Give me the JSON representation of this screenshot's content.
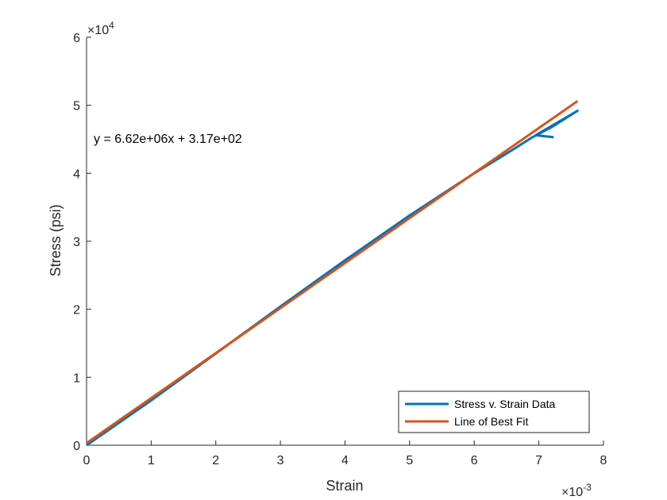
{
  "chart_data": {
    "type": "line",
    "xlabel": "Strain",
    "ylabel": "Stress (psi)",
    "x_exponent_label": "×10",
    "x_exponent_power": "-3",
    "y_exponent_label": "×10",
    "y_exponent_power": "4",
    "xlim": [
      0,
      0.008
    ],
    "ylim": [
      0,
      60000
    ],
    "x_ticks": [
      0,
      0.001,
      0.002,
      0.003,
      0.004,
      0.005,
      0.006,
      0.007,
      0.008
    ],
    "x_tick_labels": [
      "0",
      "1",
      "2",
      "3",
      "4",
      "5",
      "6",
      "7",
      "8"
    ],
    "y_ticks": [
      0,
      10000,
      20000,
      30000,
      40000,
      50000,
      60000
    ],
    "y_tick_labels": [
      "0",
      "1",
      "2",
      "3",
      "4",
      "5",
      "6"
    ],
    "annotation": "y = 6.62e+06x + 3.17e+02",
    "legend_position": "bottom-right",
    "grid": false,
    "series": [
      {
        "name": "Stress v. Strain Data",
        "color": "#0072BD",
        "x": [
          0,
          0.001,
          0.002,
          0.003,
          0.004,
          0.005,
          0.006,
          0.0066,
          0.0069,
          0.0072,
          0.0076,
          0.00695,
          0.00723
        ],
        "y": [
          0,
          6600,
          13500,
          20400,
          27200,
          33800,
          40000,
          43500,
          45300,
          46800,
          49200,
          45600,
          45300
        ]
      },
      {
        "name": "Line of Best Fit",
        "color": "#D95319",
        "x": [
          0,
          0.0076
        ],
        "y": [
          317,
          50629
        ]
      }
    ]
  }
}
